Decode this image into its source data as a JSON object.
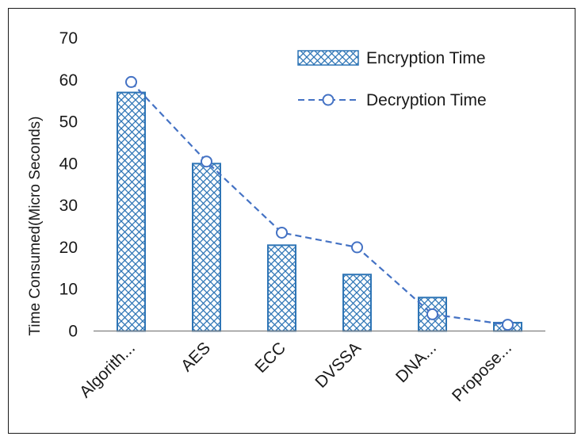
{
  "chart_data": {
    "type": "bar",
    "title": "",
    "xlabel": "",
    "ylabel": "Time Consumed(Micro Seconds)",
    "categories": [
      "Algorith...",
      "AES",
      "ECC",
      "DVSSA",
      "DNA...",
      "Propose..."
    ],
    "ylim": [
      0,
      70
    ],
    "yticks": [
      0,
      10,
      20,
      30,
      40,
      50,
      60,
      70
    ],
    "grid": false,
    "legend_position": "top-right",
    "series": [
      {
        "name": "Encryption Time",
        "kind": "bar",
        "style": "crosshatch",
        "values": [
          57,
          40,
          20.5,
          13.5,
          8,
          2
        ]
      },
      {
        "name": "Decryption Time",
        "kind": "line",
        "style": "dashed-circle-markers",
        "values": [
          59.5,
          40.5,
          23.5,
          20,
          4,
          1.5
        ]
      }
    ],
    "colors": {
      "bar_edge": "#2e75b6",
      "line": "#4472c4",
      "axis": "#7f7f7f"
    }
  }
}
